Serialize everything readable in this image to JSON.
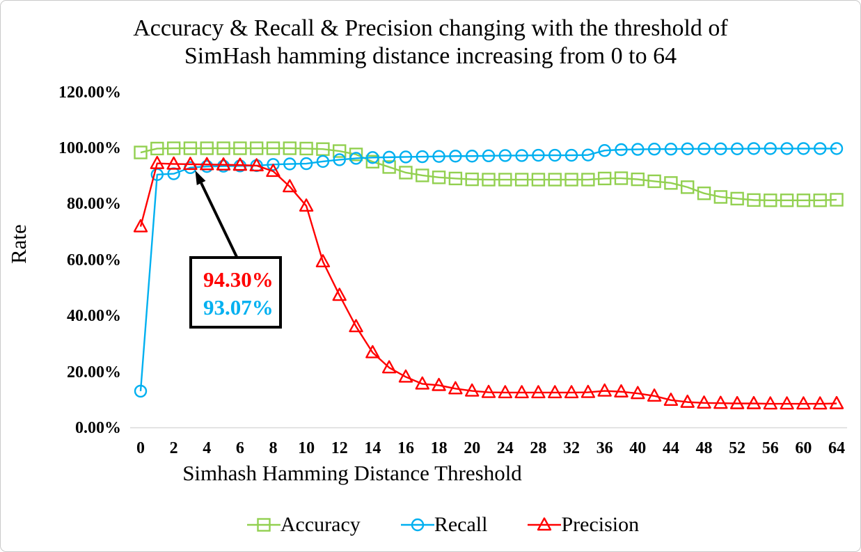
{
  "title": {
    "line1": "Accuracy & Recall & Precision changing with the threshold of",
    "line2": "SimHash hamming distance increasing from 0 to 64"
  },
  "axes": {
    "y_title": "Rate",
    "x_title": "Simhash Hamming Distance Threshold",
    "y_ticks": [
      "0.00%",
      "20.00%",
      "40.00%",
      "60.00%",
      "80.00%",
      "100.00%",
      "120.00%"
    ],
    "x_tick_labels": [
      "0",
      "2",
      "4",
      "6",
      "8",
      "10",
      "12",
      "14",
      "16",
      "18",
      "20",
      "24",
      "28",
      "32",
      "36",
      "40",
      "44",
      "48",
      "52",
      "56",
      "60",
      "64"
    ],
    "x_tick_indices": [
      0,
      2,
      4,
      6,
      8,
      10,
      12,
      14,
      16,
      18,
      20,
      22,
      24,
      26,
      28,
      30,
      32,
      34,
      36,
      38,
      40,
      42
    ]
  },
  "legend": [
    {
      "label": "Accuracy",
      "marker": "square",
      "color": "#92D050"
    },
    {
      "label": "Recall",
      "marker": "circle",
      "color": "#00B0F0"
    },
    {
      "label": "Precision",
      "marker": "triangle",
      "color": "#FF0000"
    }
  ],
  "annotation": {
    "precision_value": "94.30%",
    "recall_value": "93.07%",
    "target_index": 3,
    "precision_color": "#FF0000",
    "recall_color": "#00B0F0"
  },
  "chart_data": {
    "type": "line",
    "title": "Accuracy & Recall & Precision changing with the threshold of SimHash hamming distance increasing from 0 to 64",
    "xlabel": "Simhash Hamming Distance Threshold",
    "ylabel": "Rate",
    "ylim": [
      0,
      120
    ],
    "grid": false,
    "legend_position": "bottom",
    "axis_line_color": "#D9D9D9",
    "x": [
      0,
      1,
      2,
      3,
      4,
      5,
      6,
      7,
      8,
      9,
      10,
      11,
      12,
      13,
      14,
      15,
      16,
      17,
      18,
      19,
      20,
      22,
      24,
      26,
      28,
      30,
      32,
      34,
      36,
      38,
      40,
      42,
      44,
      46,
      48,
      50,
      52,
      54,
      56,
      58,
      60,
      62,
      64
    ],
    "series": [
      {
        "name": "Accuracy",
        "marker": "square",
        "color": "#92D050",
        "values": [
          98.5,
          99.9,
          100,
          100,
          100,
          100,
          100,
          100,
          100,
          100,
          99.9,
          99.7,
          99.0,
          97.8,
          95.2,
          93.3,
          91.3,
          90.3,
          89.6,
          89.2,
          88.9,
          88.8,
          88.8,
          88.8,
          88.8,
          88.8,
          88.8,
          88.8,
          89.2,
          89.3,
          88.9,
          88.2,
          87.6,
          86.1,
          83.9,
          82.6,
          82.0,
          81.5,
          81.4,
          81.4,
          81.4,
          81.4,
          81.6
        ]
      },
      {
        "name": "Recall",
        "marker": "circle",
        "color": "#00B0F0",
        "values": [
          13.2,
          90.6,
          90.9,
          93.07,
          93.5,
          93.6,
          93.7,
          93.8,
          94.2,
          94.4,
          94.5,
          95.3,
          95.9,
          96.4,
          96.7,
          96.8,
          96.9,
          97.0,
          97.1,
          97.2,
          97.2,
          97.3,
          97.4,
          97.4,
          97.5,
          97.5,
          97.5,
          97.6,
          99.2,
          99.5,
          99.6,
          99.7,
          99.7,
          99.8,
          99.8,
          99.8,
          99.8,
          99.9,
          99.9,
          99.9,
          99.9,
          99.9,
          99.9
        ]
      },
      {
        "name": "Precision",
        "marker": "triangle",
        "color": "#FF0000",
        "values": [
          72.0,
          94.6,
          94.4,
          94.3,
          94.2,
          94.1,
          94.0,
          93.8,
          91.8,
          86.3,
          79.4,
          59.5,
          47.5,
          36.3,
          27.0,
          21.6,
          18.3,
          15.8,
          15.3,
          14.1,
          13.3,
          12.8,
          12.7,
          12.7,
          12.7,
          12.7,
          12.7,
          12.8,
          13.3,
          13.0,
          12.4,
          11.5,
          10.0,
          9.3,
          9.0,
          8.9,
          8.8,
          8.8,
          8.7,
          8.7,
          8.7,
          8.7,
          8.8
        ]
      }
    ]
  }
}
